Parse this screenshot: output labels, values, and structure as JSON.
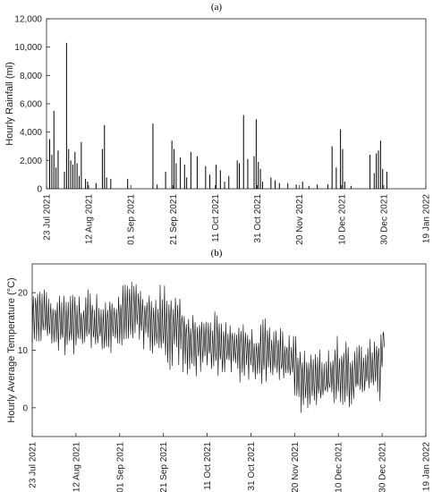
{
  "chart_data": [
    {
      "type": "bar",
      "title": "(a)",
      "xlabel": "",
      "ylabel": "Hourly Rainfall (ml)",
      "x_tick_labels": [
        "23 Jul 2021",
        "12 Aug 2021",
        "01 Sep 2021",
        "21 Sep 2021",
        "11 Oct 2021",
        "31 Oct 2021",
        "20 Nov 2021",
        "10 Dec 2021",
        "30 Dec 2021",
        "19 Jan 2022"
      ],
      "y_tick_labels": [
        "0",
        "2,000",
        "4,000",
        "6,000",
        "8,000",
        "10,000",
        "12,000"
      ],
      "xlim": [
        "2021-07-23",
        "2022-01-19"
      ],
      "ylim": [
        0,
        12000
      ],
      "grid": false,
      "x": [
        "2021-07-24",
        "2021-07-25",
        "2021-07-26",
        "2021-07-27",
        "2021-07-28",
        "2021-07-31",
        "2021-08-01",
        "2021-08-02",
        "2021-08-03",
        "2021-08-04",
        "2021-08-05",
        "2021-08-06",
        "2021-08-07",
        "2021-08-08",
        "2021-08-10",
        "2021-08-11",
        "2021-08-15",
        "2021-08-18",
        "2021-08-19",
        "2021-08-20",
        "2021-08-22",
        "2021-08-30",
        "2021-09-11",
        "2021-09-13",
        "2021-09-17",
        "2021-09-20",
        "2021-09-21",
        "2021-09-22",
        "2021-09-24",
        "2021-09-26",
        "2021-09-27",
        "2021-09-29",
        "2021-10-02",
        "2021-10-06",
        "2021-10-08",
        "2021-10-11",
        "2021-10-13",
        "2021-10-15",
        "2021-10-17",
        "2021-10-21",
        "2021-10-22",
        "2021-10-24",
        "2021-10-26",
        "2021-10-29",
        "2021-10-30",
        "2021-10-31",
        "2021-11-01",
        "2021-11-02",
        "2021-11-06",
        "2021-11-08",
        "2021-11-10",
        "2021-11-14",
        "2021-11-18",
        "2021-11-21",
        "2021-11-24",
        "2021-11-28",
        "2021-12-03",
        "2021-12-05",
        "2021-12-07",
        "2021-12-09",
        "2021-12-10",
        "2021-12-11",
        "2021-12-14",
        "2021-12-23",
        "2021-12-25",
        "2021-12-26",
        "2021-12-27",
        "2021-12-28",
        "2021-12-29",
        "2021-12-31"
      ],
      "values": [
        3500,
        2400,
        5500,
        1500,
        2700,
        1200,
        10300,
        2800,
        2000,
        1700,
        2600,
        1800,
        900,
        3300,
        700,
        500,
        400,
        2800,
        4500,
        800,
        700,
        700,
        4600,
        300,
        1200,
        3400,
        2800,
        1800,
        2200,
        1700,
        800,
        2600,
        2300,
        1600,
        1000,
        1700,
        1300,
        500,
        900,
        2000,
        1800,
        5200,
        2100,
        2300,
        4900,
        1900,
        1400,
        500,
        800,
        600,
        400,
        400,
        300,
        500,
        200,
        300,
        300,
        3000,
        1500,
        4200,
        2800,
        500,
        200,
        2400,
        1100,
        2500,
        2700,
        3400,
        1400,
        1200
      ]
    },
    {
      "type": "line",
      "title": "(b)",
      "xlabel": "",
      "ylabel": "Hourly Average Temperature (°C)",
      "x_tick_labels": [
        "23 Jul 2021",
        "12 Aug 2021",
        "01 Sep 2021",
        "21 Sep 2021",
        "11 Oct 2021",
        "31 Oct 2021",
        "20 Nov 2021",
        "10 Dec 2021",
        "30 Dec 2021",
        "19 Jan 2022"
      ],
      "y_tick_labels": [
        "0",
        "10",
        "20"
      ],
      "xlim": [
        "2021-07-23",
        "2022-01-19"
      ],
      "ylim": [
        -5,
        25
      ],
      "grid": false,
      "series": [
        {
          "x": [
            "2021-07-23",
            "2021-07-26",
            "2021-07-30",
            "2021-08-03",
            "2021-08-07",
            "2021-08-11",
            "2021-08-15",
            "2021-08-19",
            "2021-08-23",
            "2021-08-27",
            "2021-08-31",
            "2021-09-04",
            "2021-09-08",
            "2021-09-12",
            "2021-09-16",
            "2021-09-20",
            "2021-09-24",
            "2021-09-28",
            "2021-10-02",
            "2021-10-06",
            "2021-10-10",
            "2021-10-14",
            "2021-10-18",
            "2021-10-22",
            "2021-10-26",
            "2021-10-30",
            "2021-11-03",
            "2021-11-07",
            "2021-11-11",
            "2021-11-15",
            "2021-11-19",
            "2021-11-23",
            "2021-11-27",
            "2021-12-01",
            "2021-12-05",
            "2021-12-09",
            "2021-12-13",
            "2021-12-17",
            "2021-12-21",
            "2021-12-25",
            "2021-12-29",
            "2021-12-31"
          ],
          "values": [
            16,
            17,
            15,
            15,
            14,
            15,
            14,
            15,
            14,
            15,
            15,
            16,
            17,
            16,
            15,
            14,
            14,
            15,
            12,
            11,
            12,
            11,
            10,
            11,
            10,
            10,
            9,
            10,
            9,
            9,
            8,
            5,
            5,
            4,
            5,
            6,
            6,
            5,
            6,
            7,
            8,
            13
          ],
          "min": [
            9,
            10,
            11,
            8,
            9,
            9,
            10,
            9,
            10,
            8,
            9,
            10,
            11,
            10,
            9,
            8,
            6,
            7,
            5,
            5,
            6,
            5,
            5,
            4,
            4,
            4,
            4,
            4,
            3,
            4,
            3,
            -1,
            0,
            0,
            1,
            0,
            -1,
            1,
            2,
            2,
            1,
            9
          ],
          "max": [
            24,
            22,
            20,
            20,
            21,
            20,
            21,
            21,
            20,
            21,
            21,
            22,
            22,
            21,
            21,
            22,
            22,
            20,
            17,
            17,
            16,
            17,
            16,
            16,
            16,
            14,
            15,
            16,
            15,
            14,
            14,
            11,
            10,
            10,
            11,
            13,
            12,
            11,
            12,
            13,
            13,
            14
          ]
        }
      ]
    }
  ]
}
